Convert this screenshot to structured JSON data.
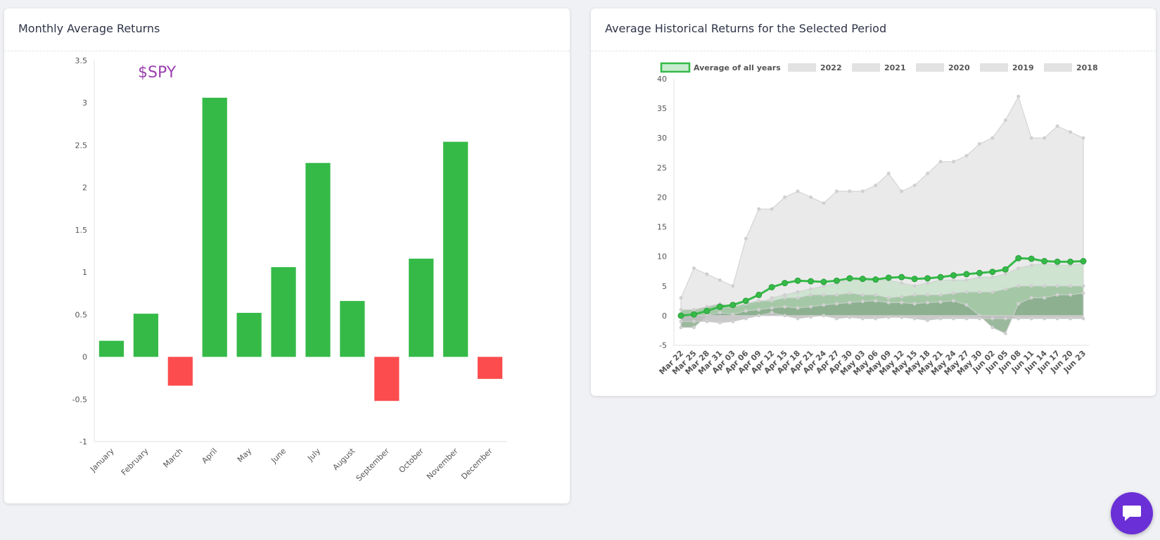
{
  "cards": [
    {
      "title": "Monthly Average Returns"
    },
    {
      "title": "Average Historical Returns for the Selected Period"
    }
  ],
  "chart_data": [
    {
      "type": "bar",
      "title": "Monthly Average Returns",
      "annotation": "$SPY",
      "categories": [
        "January",
        "February",
        "March",
        "April",
        "May",
        "June",
        "July",
        "August",
        "September",
        "October",
        "November",
        "December"
      ],
      "values": [
        0.19,
        0.51,
        -0.34,
        3.06,
        0.52,
        1.06,
        2.29,
        0.66,
        -0.52,
        1.16,
        2.54,
        -0.26
      ],
      "yticks": [
        "3.5",
        "3",
        "2.5",
        "2",
        "1.5",
        "1",
        "0.5",
        "0",
        "-0.5",
        "-1"
      ],
      "ylim": [
        -1,
        3.5
      ],
      "positive_color": "#35ba48",
      "negative_color": "#fc4c4d",
      "xlabel": "",
      "ylabel": ""
    },
    {
      "type": "area",
      "title": "Average Historical Returns for the Selected Period",
      "x": [
        "Mar 22",
        "Mar 25",
        "Mar 28",
        "Mar 31",
        "Apr 03",
        "Apr 06",
        "Apr 09",
        "Apr 12",
        "Apr 15",
        "Apr 18",
        "Apr 21",
        "Apr 24",
        "Apr 27",
        "Apr 30",
        "May 03",
        "May 06",
        "May 09",
        "May 12",
        "May 15",
        "May 18",
        "May 21",
        "May 24",
        "May 27",
        "May 30",
        "Jun 02",
        "Jun 05",
        "Jun 08",
        "Jun 11",
        "Jun 14",
        "Jun 17",
        "Jun 20",
        "Jun 23"
      ],
      "yticks": [
        "40",
        "35",
        "30",
        "25",
        "20",
        "15",
        "10",
        "5",
        "0",
        "-5"
      ],
      "ylim": [
        -5,
        40
      ],
      "legend": [
        "Average of all years",
        "2022",
        "2021",
        "2020",
        "2019",
        "2018"
      ],
      "legend_position": "top",
      "series": [
        {
          "name": "2018",
          "values": [
            -1,
            -1,
            -1,
            -1.2,
            -1,
            -0.5,
            0,
            0.5,
            0,
            -0.5,
            -0.2,
            0,
            -0.5,
            -0.3,
            -0.5,
            -0.5,
            -0.3,
            -0.3,
            -0.5,
            -0.8,
            -0.5,
            -0.5,
            -0.5,
            -0.5,
            -0.5,
            -0.5,
            -0.5,
            -0.5,
            -0.5,
            -0.5,
            -0.5,
            -0.5
          ]
        },
        {
          "name": "2019",
          "values": [
            -2,
            -2,
            0,
            0.5,
            0.2,
            0.8,
            1,
            1.3,
            1.5,
            1.3,
            1.5,
            1.8,
            2,
            2.2,
            2.4,
            2.5,
            2.2,
            2.2,
            2,
            2.2,
            2.3,
            2.5,
            1.8,
            0,
            -2,
            -3,
            2,
            3,
            3,
            3.5,
            3.5,
            3.8
          ]
        },
        {
          "name": "2020",
          "values": [
            1,
            1,
            1.5,
            2,
            1.5,
            2,
            2.5,
            2.5,
            3,
            3,
            3.5,
            3.5,
            3.5,
            3.8,
            3.5,
            3.5,
            3,
            3.2,
            3.5,
            3.5,
            3.5,
            3.8,
            4,
            4,
            4,
            4.5,
            5,
            5,
            5,
            5,
            5,
            5
          ]
        },
        {
          "name": "2021",
          "values": [
            -1,
            -1,
            0.5,
            1,
            1,
            1.5,
            2,
            3,
            3.5,
            4,
            4.5,
            5,
            5.5,
            6,
            6,
            6,
            6,
            5.5,
            5,
            5.5,
            6,
            6,
            6,
            6.5,
            6.5,
            7,
            8,
            8.5,
            8.8,
            8.5,
            8.5,
            8.8
          ]
        },
        {
          "name": "2022",
          "values": [
            3,
            8,
            7,
            6,
            5,
            13,
            18,
            18,
            20,
            21,
            20,
            19,
            21,
            21,
            21,
            22,
            24,
            21,
            22,
            24,
            26,
            26,
            27,
            29,
            30,
            33,
            37,
            30,
            30,
            32,
            31,
            30
          ]
        },
        {
          "name": "Average of all years",
          "values": [
            0,
            0.2,
            0.8,
            1.5,
            1.8,
            2.5,
            3.5,
            4.8,
            5.5,
            5.9,
            5.8,
            5.7,
            5.9,
            6.3,
            6.2,
            6.1,
            6.4,
            6.5,
            6.2,
            6.3,
            6.5,
            6.8,
            7,
            7.2,
            7.4,
            7.8,
            9.7,
            9.6,
            9.2,
            9.1,
            9.1,
            9.2
          ]
        }
      ],
      "colors": {
        "average": "#35ba48",
        "history": "#c9c9c9"
      }
    }
  ],
  "icons": {
    "chat": "chat-icon"
  }
}
